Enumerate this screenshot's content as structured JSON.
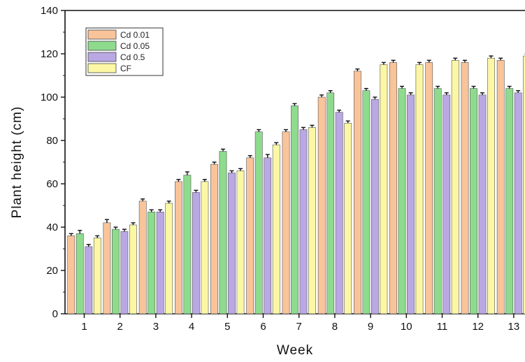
{
  "chart_data": {
    "type": "bar",
    "title": "",
    "xlabel": "Week",
    "ylabel": "Plant height (cm)",
    "ylim": [
      0,
      140
    ],
    "yticks": [
      0,
      20,
      40,
      60,
      80,
      100,
      120,
      140
    ],
    "categories": [
      "1",
      "2",
      "3",
      "4",
      "5",
      "6",
      "7",
      "8",
      "9",
      "10",
      "11",
      "12",
      "13"
    ],
    "legend_position": "top-left",
    "grid": false,
    "series": [
      {
        "name": "Cd 0.01",
        "color": "#F9C49A",
        "values": [
          36,
          42,
          52,
          61,
          69,
          72,
          84,
          100,
          112,
          116,
          116,
          116,
          117
        ],
        "errors": [
          1,
          1.5,
          1,
          1,
          1,
          1,
          1,
          1,
          1,
          1,
          1,
          1,
          1
        ]
      },
      {
        "name": "Cd 0.05",
        "color": "#8EDB8E",
        "values": [
          37,
          39,
          47,
          64,
          75,
          84,
          96,
          102,
          103,
          104,
          104,
          104,
          104
        ],
        "errors": [
          1.5,
          1,
          1,
          1.5,
          1,
          1,
          1,
          1,
          1,
          1,
          1,
          1,
          1
        ]
      },
      {
        "name": "Cd 0.5",
        "color": "#B9A8E3",
        "values": [
          31,
          38,
          47,
          56,
          65,
          72,
          85,
          93,
          99,
          101,
          101,
          101,
          102
        ],
        "errors": [
          1,
          1,
          1,
          1,
          1,
          1.5,
          1,
          1,
          1,
          1,
          1,
          1,
          1
        ]
      },
      {
        "name": "CF",
        "color": "#FBF7A4",
        "values": [
          35,
          41,
          51,
          61,
          66,
          78,
          86,
          88,
          115,
          115,
          117,
          118,
          119
        ],
        "errors": [
          1,
          1,
          1,
          1,
          1,
          1,
          1,
          1,
          1,
          1,
          1,
          1,
          1
        ]
      }
    ]
  }
}
